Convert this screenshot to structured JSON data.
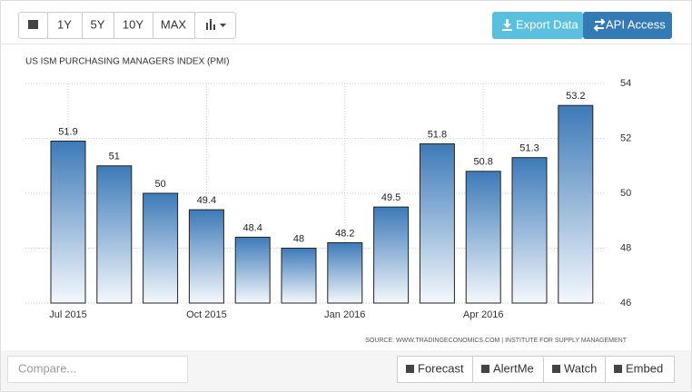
{
  "toolbar": {
    "ranges": [
      "1Y",
      "5Y",
      "10Y",
      "MAX"
    ],
    "actions": [
      "Export Data",
      "API Access"
    ]
  },
  "chart_data": {
    "type": "bar",
    "title": "US ISM PURCHASING MANAGERS INDEX (PMI)",
    "categories": [
      "Jul 2015",
      null,
      null,
      "Oct 2015",
      null,
      null,
      "Jan 2016",
      null,
      null,
      "Apr 2016",
      null,
      null
    ],
    "values": [
      51.9,
      51,
      50,
      49.4,
      48.4,
      48,
      48.2,
      49.5,
      51.8,
      50.8,
      51.3,
      53.2
    ],
    "color": "#3d7ab8",
    "ylim": [
      46,
      54
    ],
    "yticks": [
      46,
      48,
      50,
      52,
      54
    ],
    "grid": true,
    "source": "SOURCE: WWW.TRADINGECONOMICS.COM | INSTITUTE FOR SUPPLY MANAGEMENT"
  },
  "footer": {
    "compare_placeholder": "Compare...",
    "buttons": [
      "Forecast",
      "AlertMe",
      "Watch",
      "Embed"
    ]
  }
}
